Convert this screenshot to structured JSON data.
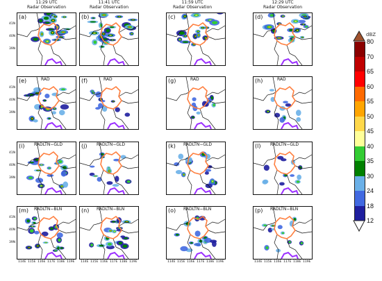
{
  "columns": [
    {
      "time": "11:29 UTC",
      "subtitle": "Radar Observation"
    },
    {
      "time": "11:41 UTC",
      "subtitle": "Radar Observation"
    },
    {
      "time": "11:59 UTC",
      "subtitle": "Radar Observation"
    },
    {
      "time": "12:29 UTC",
      "subtitle": "Radar Observation"
    }
  ],
  "rows": [
    {
      "name": "obs",
      "title": "",
      "labels": [
        "(a)",
        "(b)",
        "(c)",
        "(d)"
      ]
    },
    {
      "name": "rad",
      "title": "RAD",
      "labels": [
        "(e)",
        "(f)",
        "(g)",
        "(h)"
      ]
    },
    {
      "name": "gld",
      "title": "RADLTN−GLD",
      "labels": [
        "(i)",
        "(j)",
        "(k)",
        "(l)"
      ]
    },
    {
      "name": "bln",
      "title": "RADLTN−BLN",
      "labels": [
        "(m)",
        "(n)",
        "(o)",
        "(p)"
      ]
    }
  ],
  "lat_ticks": [
    "41N",
    "40N",
    "39N"
  ],
  "lon_ticks": [
    "114E",
    "115E",
    "116E",
    "117E",
    "118E",
    "119E"
  ],
  "colorbar": {
    "unit": "dBZ",
    "ticks": [
      "80",
      "70",
      "65",
      "60",
      "55",
      "50",
      "45",
      "40",
      "35",
      "30",
      "24",
      "18",
      "12"
    ],
    "colors": [
      "#a0522d",
      "#8b0000",
      "#c00000",
      "#ff0000",
      "#ff6a00",
      "#ffa500",
      "#ffd84a",
      "#ffff99",
      "#33cc33",
      "#008000",
      "#6ab0e8",
      "#4169e1",
      "#1e1e9e"
    ]
  },
  "outline_color": "#ff7f3f",
  "boundary_color": "#9b30ff"
}
